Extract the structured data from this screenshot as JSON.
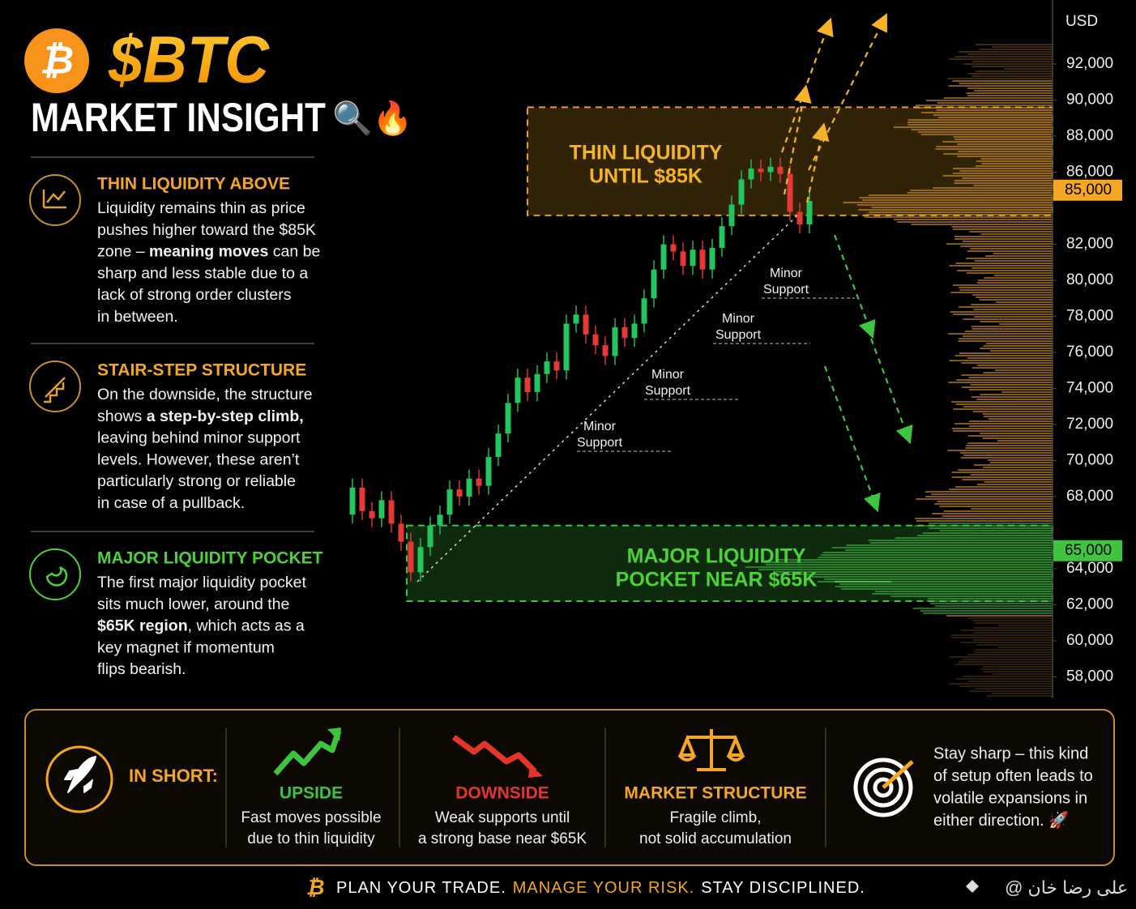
{
  "header": {
    "logo": "₿",
    "ticker": "$BTC",
    "title": "MARKET INSIGHT",
    "title_emoji": "🔍🔥"
  },
  "sections": [
    {
      "title": "THIN LIQUIDITY ABOVE",
      "color": "#f5a623",
      "lines": [
        [
          "Liquidity remains thin as price"
        ],
        [
          "pushes higher toward the $85K"
        ],
        [
          "zone – ",
          {
            "text": "meaning moves",
            "bold": true
          },
          " can be"
        ],
        [
          "sharp and less stable due to a"
        ],
        [
          "lack of strong order clusters"
        ],
        [
          "in between."
        ]
      ]
    },
    {
      "title": "STAIR-STEP STRUCTURE",
      "color": "#f5a623",
      "lines": [
        [
          "On the downside, the structure"
        ],
        [
          "shows ",
          {
            "text": "a step-by-step climb,",
            "bold": true
          }
        ],
        [
          "leaving behind minor support"
        ],
        [
          "levels. However, these aren’t"
        ],
        [
          "particularly strong or reliable"
        ],
        [
          "in case of a pullback."
        ]
      ]
    },
    {
      "title": "MAJOR LIQUIDITY POCKET",
      "color": "#4cd137",
      "lines": [
        [
          "The first major liquidity pocket"
        ],
        [
          "sits much lower, around the"
        ],
        [
          {
            "text": "$65K region",
            "bold": true
          },
          ", which acts as a"
        ],
        [
          "key magnet if momentum"
        ],
        [
          "flips bearish."
        ]
      ]
    }
  ],
  "chart_data": {
    "type": "candlestick",
    "y_axis_label": "USD",
    "ylim": [
      57000,
      94500
    ],
    "yticks": [
      {
        "value": 92000,
        "label": "92,000"
      },
      {
        "value": 90000,
        "label": "90,000"
      },
      {
        "value": 88000,
        "label": "88,000"
      },
      {
        "value": 86000,
        "label": "86,000"
      },
      {
        "value": 82000,
        "label": "82,000"
      },
      {
        "value": 80000,
        "label": "80,000"
      },
      {
        "value": 78000,
        "label": "78,000"
      },
      {
        "value": 76000,
        "label": "76,000"
      },
      {
        "value": 74000,
        "label": "74,000"
      },
      {
        "value": 72000,
        "label": "72,000"
      },
      {
        "value": 70000,
        "label": "70,000"
      },
      {
        "value": 68000,
        "label": "68,000"
      },
      {
        "value": 64000,
        "label": "64,000"
      },
      {
        "value": 62000,
        "label": "62,000"
      },
      {
        "value": 60000,
        "label": "60,000"
      },
      {
        "value": 58000,
        "label": "58,000"
      }
    ],
    "price_levels": [
      {
        "value": 85000,
        "label": "85,000",
        "color": "#f5a623"
      },
      {
        "value": 65000,
        "label": "65,000",
        "color": "#3ec43e"
      }
    ],
    "up_color": "#22c55e",
    "down_color": "#e53935",
    "open": [
      67000,
      68500,
      67200,
      66800,
      67800,
      66500,
      65500,
      63800,
      65200,
      66400,
      67000,
      68400,
      68000,
      69000,
      68600,
      70200,
      71500,
      73200,
      74600,
      73800,
      74800,
      75500,
      75000,
      77600,
      78100,
      77000,
      76400,
      75800,
      77400,
      76800,
      77600,
      79000,
      80600,
      82000,
      81600,
      80800,
      81700,
      80600,
      81800,
      83000,
      84200,
      85600,
      86200,
      86000,
      86300,
      85900,
      83800,
      83100
    ],
    "high": [
      69000,
      69000,
      67700,
      68300,
      68300,
      67000,
      66000,
      65700,
      66900,
      67500,
      68900,
      68900,
      69500,
      69500,
      70700,
      72000,
      73700,
      75100,
      75100,
      75300,
      76000,
      76000,
      78100,
      78600,
      78600,
      77500,
      76900,
      77900,
      77900,
      78100,
      79500,
      81100,
      82500,
      82500,
      82100,
      82200,
      82200,
      82300,
      83500,
      84700,
      86100,
      86700,
      86700,
      86800,
      86800,
      86400,
      84300,
      84900
    ],
    "low": [
      66500,
      66700,
      66300,
      66300,
      66000,
      65000,
      63300,
      63300,
      64700,
      65900,
      66500,
      67500,
      67500,
      68100,
      68100,
      69700,
      71000,
      72700,
      73300,
      73300,
      74300,
      74500,
      74500,
      77100,
      76500,
      75900,
      75300,
      75300,
      76300,
      76300,
      77100,
      78500,
      80100,
      81100,
      80300,
      80300,
      80100,
      80100,
      81300,
      82500,
      83700,
      85100,
      85500,
      85500,
      85400,
      83300,
      82600,
      82600
    ],
    "close": [
      68500,
      67200,
      66800,
      67800,
      66500,
      65500,
      63800,
      65200,
      66400,
      67000,
      68400,
      68000,
      69000,
      68600,
      70200,
      71500,
      73200,
      74600,
      73800,
      74800,
      75500,
      75000,
      77600,
      78100,
      77000,
      76400,
      75800,
      77400,
      76800,
      77600,
      79000,
      80600,
      82000,
      81600,
      80800,
      81700,
      80600,
      81800,
      83000,
      84200,
      85600,
      86200,
      86000,
      86300,
      85900,
      83800,
      83100,
      84400
    ],
    "zones": [
      {
        "label": [
          "THIN LIQUIDITY",
          "UNTIL $85K"
        ],
        "top": 89600,
        "bottom": 83600,
        "color": "#e0a020"
      },
      {
        "label": [
          "MAJOR LIQUIDITY",
          "POCKET NEAR $65K"
        ],
        "top": 66400,
        "bottom": 62200,
        "color": "#3ec43e"
      }
    ],
    "annotations": [
      [
        "Minor",
        "Support"
      ],
      [
        "Minor",
        "Support"
      ],
      [
        "Minor",
        "Support"
      ],
      [
        "Minor",
        "Support"
      ]
    ]
  },
  "summary": {
    "label": "IN SHORT:",
    "items": [
      {
        "title": "UPSIDE",
        "color": "#3ec43e",
        "lines": [
          "Fast moves possible",
          "due to thin liquidity"
        ]
      },
      {
        "title": "DOWNSIDE",
        "color": "#e5352b",
        "lines": [
          "Weak supports until",
          "a strong base near $65K"
        ]
      },
      {
        "title": "MARKET STRUCTURE",
        "color": "#f5a623",
        "lines": [
          "Fragile climb,",
          "not solid accumulation"
        ]
      }
    ],
    "note": [
      "Stay sharp – this kind",
      "of setup often leads to",
      "volatile expansions in",
      "either direction. 🚀"
    ]
  },
  "footer": {
    "parts": [
      "PLAN YOUR TRADE.",
      "MANAGE YOUR RISK.",
      "STAY DISCIPLINED."
    ],
    "handle": "@ علی رضا خان"
  }
}
